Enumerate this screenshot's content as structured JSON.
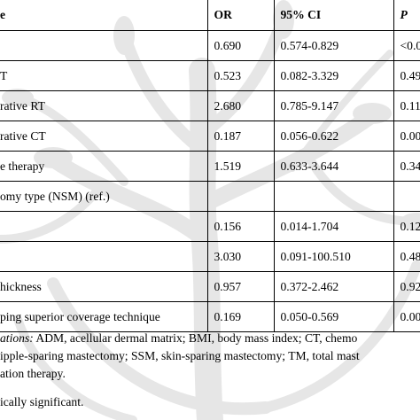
{
  "table": {
    "headers": {
      "variable": "e",
      "or": "OR",
      "ci": "95% CI",
      "p": "P"
    },
    "rows": [
      {
        "variable": "",
        "or": "0.690",
        "ci": "0.574-0.829",
        "p": "<0.0"
      },
      {
        "variable": "T",
        "or": "0.523",
        "ci": "0.082-3.329",
        "p": "0.49"
      },
      {
        "variable": "rative RT",
        "or": "2.680",
        "ci": "0.785-9.147",
        "p": "0.11"
      },
      {
        "variable": "rative CT",
        "or": "0.187",
        "ci": "0.056-0.622",
        "p": "0.00"
      },
      {
        "variable": "e therapy",
        "or": "1.519",
        "ci": "0.633-3.644",
        "p": "0.34"
      },
      {
        "variable": "omy type (NSM) (ref.)",
        "or": "",
        "ci": "",
        "p": ""
      },
      {
        "variable": "",
        "or": "0.156",
        "ci": "0.014-1.704",
        "p": "0.12"
      },
      {
        "variable": "",
        "or": "3.030",
        "ci": "0.091-100.510",
        "p": "0.48"
      },
      {
        "variable": "hickness",
        "or": "0.957",
        "ci": "0.372-2.462",
        "p": "0.92"
      },
      {
        "variable": "ping superior coverage technique",
        "or": "0.169",
        "ci": "0.050-0.569",
        "p": "0.00"
      }
    ]
  },
  "footnote": {
    "abbr_label": "ations:",
    "line1_rest": " ADM, acellular dermal matrix; BMI, body mass index; CT, chemo",
    "line2": "ipple-sparing mastectomy; SSM, skin-sparing mastectomy; TM, total mast",
    "line3": "ation therapy.",
    "line4": "ically significant."
  },
  "colors": {
    "background": "#ffffff",
    "text": "#000000",
    "watermark": "#e6e6e6"
  }
}
